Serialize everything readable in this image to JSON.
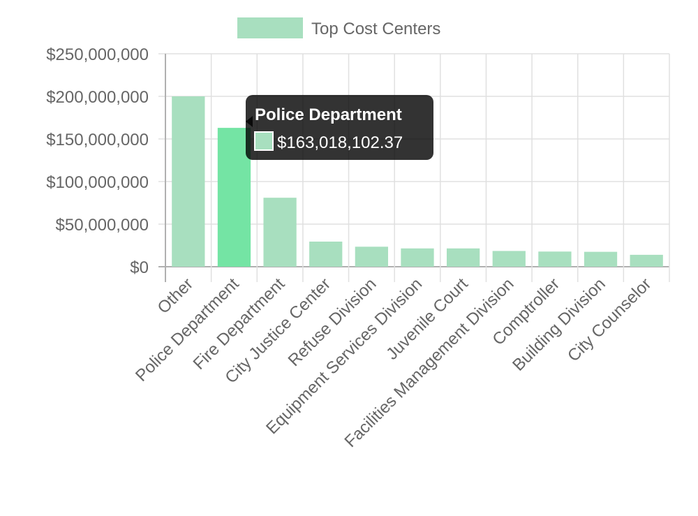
{
  "chart_data": {
    "type": "bar",
    "categories": [
      "Other",
      "Police Department",
      "Fire Department",
      "City Justice Center",
      "Refuse Division",
      "Equipment Services Division",
      "Juvenile Court",
      "Facilities Management Division",
      "Comptroller",
      "Building Division",
      "City Counselor"
    ],
    "series": [
      {
        "name": "Top Cost Centers",
        "values": [
          200000000,
          163018102.37,
          81000000,
          29500000,
          23500000,
          21500000,
          21500000,
          18500000,
          17800000,
          17500000,
          14000000
        ]
      }
    ],
    "y_ticks": [
      "$0",
      "$50,000,000",
      "$100,000,000",
      "$150,000,000",
      "$200,000,000",
      "$250,000,000"
    ],
    "ylim": [
      0,
      250000000
    ],
    "grid": true,
    "legend_position": "top",
    "colors": {
      "bar": "#a8dfbf",
      "bar_highlight": "#74e4a4",
      "grid": "#e0e0e0",
      "axis": "#b0b0b0"
    },
    "tooltip": {
      "category_index": 1,
      "title": "Police Department",
      "value_text": "$163,018,102.37"
    }
  }
}
